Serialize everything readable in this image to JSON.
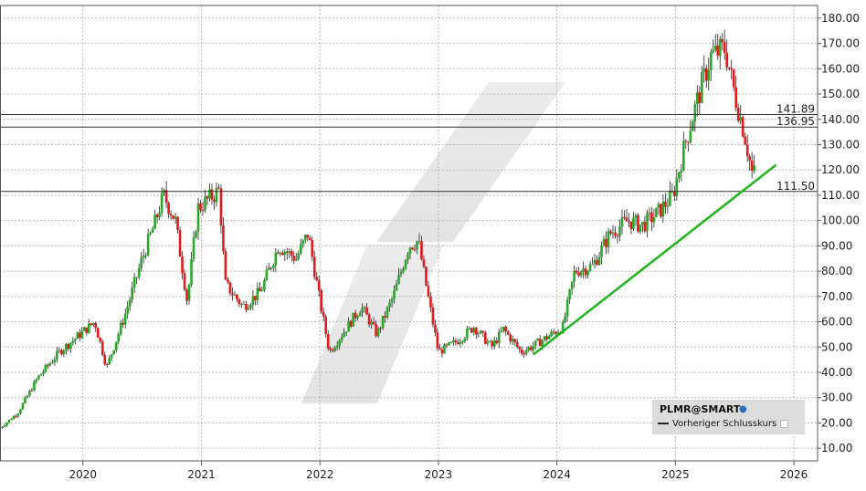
{
  "chart_data": {
    "type": "candlestick",
    "ticker": "PLMR@SMART",
    "y_ticks": [
      "10.00",
      "20.00",
      "30.00",
      "40.00",
      "50.00",
      "60.00",
      "70.00",
      "80.00",
      "90.00",
      "100.00",
      "110.00",
      "120.00",
      "130.00",
      "140.00",
      "150.00",
      "160.00",
      "170.00",
      "180.00"
    ],
    "x_ticks": [
      "2020",
      "2021",
      "2022",
      "2023",
      "2024",
      "2025",
      "2026"
    ],
    "ylim": [
      5,
      185
    ],
    "xlim": [
      2019.3,
      2026.2
    ],
    "grid": true,
    "levels": [
      {
        "value": 141.89,
        "label": "141.89"
      },
      {
        "value": 136.95,
        "label": "136.95"
      },
      {
        "value": 111.5,
        "label": "111.50"
      }
    ],
    "trendline": {
      "x": [
        2023.8,
        2025.85
      ],
      "y": [
        47,
        122
      ]
    },
    "price_path": [
      [
        2019.3,
        18
      ],
      [
        2019.45,
        24
      ],
      [
        2019.62,
        38
      ],
      [
        2019.8,
        48
      ],
      [
        2019.95,
        54
      ],
      [
        2020.1,
        60
      ],
      [
        2020.2,
        42
      ],
      [
        2020.35,
        62
      ],
      [
        2020.5,
        85
      ],
      [
        2020.6,
        98
      ],
      [
        2020.68,
        110
      ],
      [
        2020.78,
        100
      ],
      [
        2020.88,
        68
      ],
      [
        2020.97,
        105
      ],
      [
        2021.1,
        110
      ],
      [
        2021.15,
        112
      ],
      [
        2021.2,
        75
      ],
      [
        2021.35,
        66
      ],
      [
        2021.5,
        72
      ],
      [
        2021.65,
        90
      ],
      [
        2021.8,
        85
      ],
      [
        2021.9,
        95
      ],
      [
        2022.0,
        68
      ],
      [
        2022.08,
        48
      ],
      [
        2022.2,
        56
      ],
      [
        2022.35,
        66
      ],
      [
        2022.48,
        55
      ],
      [
        2022.62,
        70
      ],
      [
        2022.75,
        90
      ],
      [
        2022.83,
        92
      ],
      [
        2022.92,
        68
      ],
      [
        2023.0,
        48
      ],
      [
        2023.15,
        52
      ],
      [
        2023.3,
        58
      ],
      [
        2023.45,
        50
      ],
      [
        2023.55,
        57
      ],
      [
        2023.7,
        48
      ],
      [
        2023.82,
        51
      ],
      [
        2023.92,
        54
      ],
      [
        2024.05,
        58
      ],
      [
        2024.15,
        80
      ],
      [
        2024.3,
        82
      ],
      [
        2024.45,
        95
      ],
      [
        2024.6,
        100
      ],
      [
        2024.72,
        98
      ],
      [
        2024.85,
        103
      ],
      [
        2024.98,
        110
      ],
      [
        2025.08,
        130
      ],
      [
        2025.2,
        150
      ],
      [
        2025.3,
        165
      ],
      [
        2025.42,
        168
      ],
      [
        2025.5,
        150
      ],
      [
        2025.58,
        135
      ],
      [
        2025.65,
        118
      ],
      [
        2025.68,
        120
      ]
    ]
  },
  "legend": {
    "title": "PLMR@SMART",
    "item": "Vorheriger Schlusskurs"
  }
}
